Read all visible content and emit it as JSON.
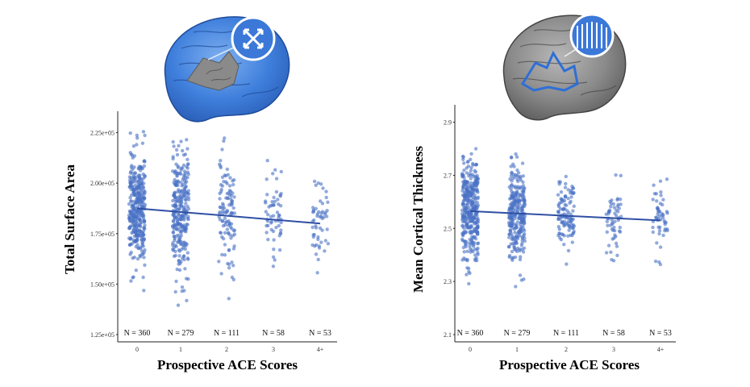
{
  "chart_data": [
    {
      "type": "scatter",
      "subtype": "jittered strip plot with linear trend line",
      "xlabel": "Prospective ACE Scores",
      "ylabel": "Total Surface Area",
      "categories": [
        "0",
        "1",
        "2",
        "3",
        "4+"
      ],
      "y_ticks": [
        "1.25e+05",
        "1.50e+05",
        "1.75e+05",
        "2.00e+05",
        "2.25e+05"
      ],
      "ylim": [
        125000,
        230000
      ],
      "n_labels": [
        "N = 360",
        "N = 279",
        "N = 111",
        "N = 58",
        "N = 53"
      ],
      "group_sizes": [
        360,
        279,
        111,
        58,
        53
      ],
      "group_ranges": [
        [
          141000,
          227000
        ],
        [
          133000,
          227000
        ],
        [
          140000,
          225000
        ],
        [
          152000,
          224000
        ],
        [
          148000,
          222000
        ]
      ],
      "group_centers": [
        187000,
        185000,
        184000,
        183000,
        181000
      ],
      "trend_line": {
        "x": [
          "0",
          "4+"
        ],
        "y": [
          187500,
          180000
        ]
      },
      "point_color": "#4a72c4",
      "line_color": "#2f4fa3",
      "grid": false,
      "brain_icon": "brain-surface-area-icon"
    },
    {
      "type": "scatter",
      "subtype": "jittered strip plot with linear trend line",
      "xlabel": "Prospective ACE Scores",
      "ylabel": "Mean Cortical Thickness",
      "categories": [
        "0",
        "1",
        "2",
        "3",
        "4+"
      ],
      "y_ticks": [
        "2.1",
        "2.3",
        "2.5",
        "2.7",
        "2.9"
      ],
      "ylim": [
        2.1,
        2.92
      ],
      "n_labels": [
        "N = 360",
        "N = 279",
        "N = 111",
        "N = 58",
        "N = 53"
      ],
      "group_sizes": [
        360,
        279,
        111,
        58,
        53
      ],
      "group_ranges": [
        [
          2.24,
          2.85
        ],
        [
          2.27,
          2.79
        ],
        [
          2.34,
          2.73
        ],
        [
          2.29,
          2.71
        ],
        [
          2.3,
          2.7
        ]
      ],
      "group_centers": [
        2.57,
        2.56,
        2.55,
        2.54,
        2.53
      ],
      "trend_line": {
        "x": [
          "0",
          "4+"
        ],
        "y": [
          2.565,
          2.53
        ]
      },
      "point_color": "#4a72c4",
      "line_color": "#2f4fa3",
      "grid": false,
      "brain_icon": "brain-cortical-thickness-icon"
    }
  ]
}
